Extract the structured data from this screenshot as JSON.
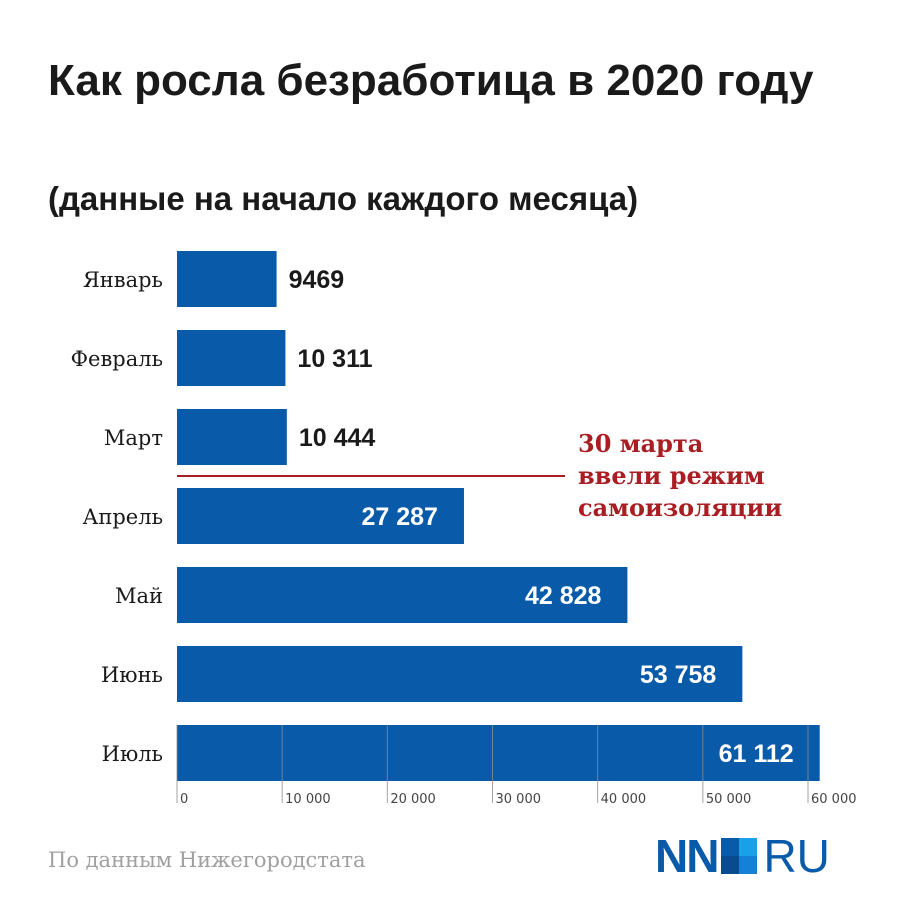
{
  "chart_data": {
    "type": "bar",
    "orientation": "horizontal",
    "title": "Как росла безработица в 2020 году",
    "subtitle": "(данные на начало каждого месяца)",
    "categories": [
      "Январь",
      "Февраль",
      "Март",
      "Апрель",
      "Май",
      "Июнь",
      "Июль"
    ],
    "values": [
      9469,
      10311,
      10444,
      27287,
      42828,
      53758,
      61112
    ],
    "value_labels": [
      "9469",
      "10 311",
      "10 444",
      "27 287",
      "42 828",
      "53 758",
      "61 112"
    ],
    "xlim": [
      0,
      60000
    ],
    "xticks": [
      0,
      10000,
      20000,
      30000,
      40000,
      50000,
      60000
    ],
    "xtick_labels": [
      "0",
      "10 000",
      "20 000",
      "30 000",
      "40 000",
      "50 000",
      "60 000"
    ],
    "annotation": {
      "after_category": "Март",
      "lines": [
        "30 марта",
        "ввели режим",
        "самоизоляции"
      ]
    },
    "xlabel": "",
    "ylabel": "",
    "grid": false
  },
  "source": "По данным Нижегородстата",
  "logo": {
    "left": "NN",
    "right": "RU"
  },
  "colors": {
    "bar": "#0a5aaa",
    "annotation": "#a91e22",
    "text": "#1a1a1a",
    "tick": "#999999"
  }
}
